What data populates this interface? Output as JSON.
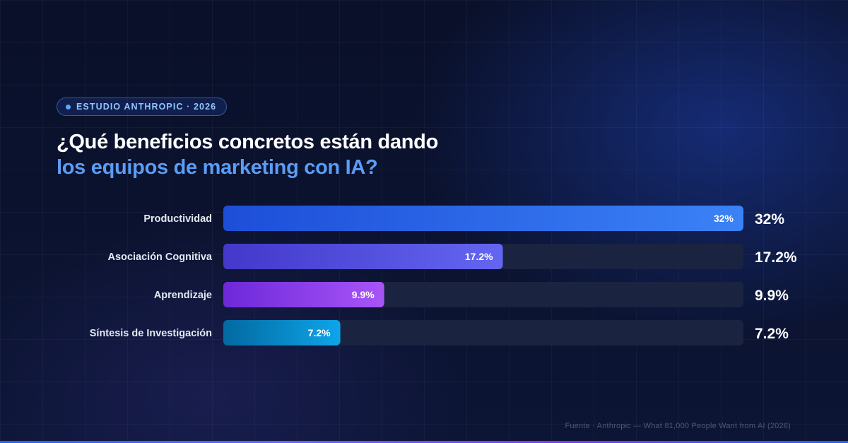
{
  "header": {
    "badge": "ESTUDIO ANTHROPIC · 2026",
    "title_line1": "¿Qué beneficios concretos están dando",
    "title_line2": "los equipos de marketing con IA?"
  },
  "footer": {
    "source": "Fuente · Anthropic — What 81,000 People Want from AI (2026)"
  },
  "chart_data": {
    "type": "bar",
    "orientation": "horizontal",
    "categories": [
      "Productividad",
      "Asociación Cognitiva",
      "Aprendizaje",
      "Síntesis de Investigación"
    ],
    "values": [
      32,
      17.2,
      9.9,
      7.2
    ],
    "labels": [
      "32%",
      "17.2%",
      "9.9%",
      "7.2%"
    ],
    "xlim": [
      0,
      32
    ],
    "unit": "%",
    "title": "¿Qué beneficios concretos están dando los equipos de marketing con IA?",
    "grid": false,
    "bar_gradients": [
      [
        "#1d4ed8",
        "#3b82f6"
      ],
      [
        "#4338ca",
        "#6366f1"
      ],
      [
        "#6d28d9",
        "#a855f7"
      ],
      [
        "#0369a1",
        "#0ea5e9"
      ]
    ],
    "track_color": "#1a2340"
  }
}
